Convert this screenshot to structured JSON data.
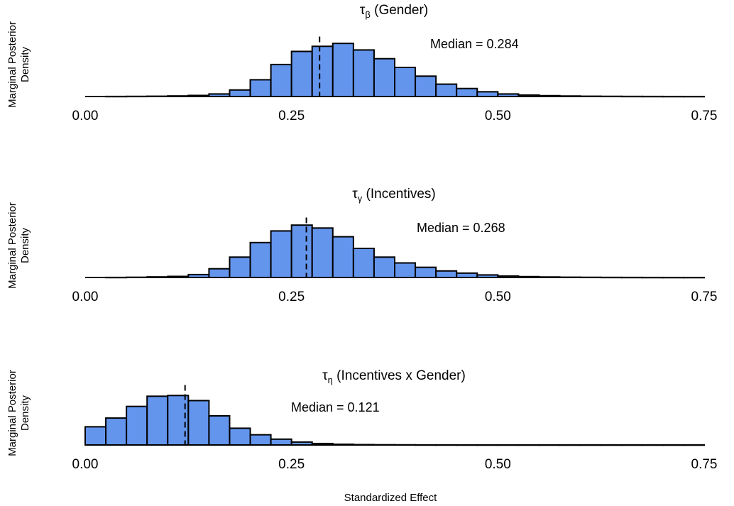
{
  "xlabel": "Standardized Effect",
  "chart_data": [
    {
      "type": "bar",
      "title_symbol": "τ",
      "title_subscript": "β",
      "title_text": " (Gender)",
      "ylabel_line1": "Marginal Posterior",
      "ylabel_line2": "Density",
      "median_label": "Median = 0.284",
      "median": 0.284,
      "xlim": [
        0,
        0.75
      ],
      "xticks": [
        0,
        0.25,
        0.5,
        0.75
      ],
      "xtick_labels": [
        "0.00",
        "0.25",
        "0.50",
        "0.75"
      ],
      "bin_width": 0.025,
      "bins_start": [
        0.025,
        0.05,
        0.075,
        0.1,
        0.125,
        0.15,
        0.175,
        0.2,
        0.225,
        0.25,
        0.275,
        0.3,
        0.325,
        0.35,
        0.375,
        0.4,
        0.425,
        0.45,
        0.475,
        0.5,
        0.525,
        0.55,
        0.575,
        0.6,
        0.625,
        0.65,
        0.675,
        0.7,
        0.725
      ],
      "values": [
        0.1,
        0.2,
        0.4,
        0.8,
        1.5,
        3.5,
        9,
        23,
        44,
        62,
        69,
        73,
        64,
        52,
        40,
        28,
        17,
        11,
        6.5,
        3.5,
        2,
        1.2,
        0.7,
        0.4,
        0.25,
        0.15,
        0.1,
        0.05,
        0.03
      ],
      "ylim": [
        0,
        80
      ]
    },
    {
      "type": "bar",
      "title_symbol": "τ",
      "title_subscript": "γ",
      "title_text": " (Incentives)",
      "ylabel_line1": "Marginal Posterior",
      "ylabel_line2": "Density",
      "median_label": "Median = 0.268",
      "median": 0.268,
      "xlim": [
        0,
        0.75
      ],
      "xticks": [
        0,
        0.25,
        0.5,
        0.75
      ],
      "xtick_labels": [
        "0.00",
        "0.25",
        "0.50",
        "0.75"
      ],
      "bin_width": 0.025,
      "bins_start": [
        0.025,
        0.05,
        0.075,
        0.1,
        0.125,
        0.15,
        0.175,
        0.2,
        0.225,
        0.25,
        0.275,
        0.3,
        0.325,
        0.35,
        0.375,
        0.4,
        0.425,
        0.45,
        0.475,
        0.5,
        0.525,
        0.55,
        0.575,
        0.6,
        0.625,
        0.65,
        0.675,
        0.7,
        0.725
      ],
      "values": [
        0.1,
        0.3,
        0.8,
        1.5,
        4,
        12,
        28,
        48,
        64,
        72,
        68,
        56,
        40,
        28,
        20,
        14,
        9,
        6,
        3.5,
        2,
        1.2,
        0.7,
        0.4,
        0.25,
        0.15,
        0.1,
        0.05,
        0.03,
        0.02
      ],
      "ylim": [
        0,
        80
      ]
    },
    {
      "type": "bar",
      "title_symbol": "τ",
      "title_subscript": "η",
      "title_text": " (Incentives x Gender)",
      "ylabel_line1": "Marginal Posterior",
      "ylabel_line2": "Density",
      "median_label": "Median = 0.121",
      "median": 0.121,
      "xlim": [
        0,
        0.75
      ],
      "xticks": [
        0,
        0.25,
        0.5,
        0.75
      ],
      "xtick_labels": [
        "0.00",
        "0.25",
        "0.50",
        "0.75"
      ],
      "bin_width": 0.025,
      "bins_start": [
        0,
        0.025,
        0.05,
        0.075,
        0.1,
        0.125,
        0.15,
        0.175,
        0.2,
        0.225,
        0.25,
        0.275,
        0.3,
        0.325,
        0.35,
        0.375,
        0.4,
        0.425,
        0.45,
        0.475,
        0.5,
        0.525,
        0.55,
        0.575,
        0.6,
        0.625,
        0.65,
        0.675,
        0.7,
        0.725
      ],
      "values": [
        25,
        37,
        53,
        67,
        68,
        61,
        40,
        23,
        14,
        8,
        4,
        2,
        1,
        0.5,
        0.3,
        0.2,
        0.1,
        0.08,
        0.05,
        0.04,
        0.03,
        0.02,
        0.02,
        0.01,
        0.01,
        0.01,
        0.01,
        0.01,
        0.01,
        0.01
      ],
      "ylim": [
        0,
        80
      ]
    }
  ]
}
